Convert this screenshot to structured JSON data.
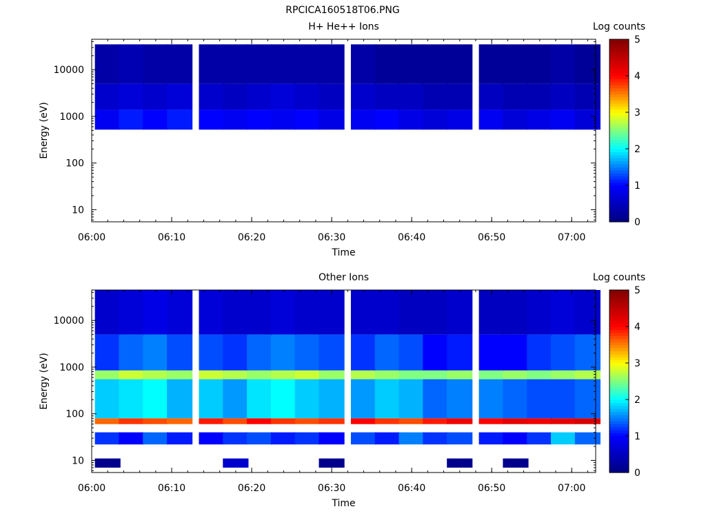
{
  "figure_title": "RPCICA160518T06.PNG",
  "colors": {
    "colormap": [
      "#000080",
      "#0000ff",
      "#00ffff",
      "#ffff00",
      "#ff0000",
      "#800000"
    ],
    "background": "#ffffff",
    "axis": "#000000"
  },
  "chart_data": [
    {
      "type": "heatmap",
      "title": "H+ He++ Ions",
      "xlabel": "Time",
      "ylabel": "Energy (eV)",
      "yscale": "log",
      "xlim": [
        "06:00",
        "07:03"
      ],
      "ylim": [
        5.5,
        45000
      ],
      "x_ticks": [
        "06:00",
        "06:10",
        "06:20",
        "06:30",
        "06:40",
        "06:50",
        "07:00"
      ],
      "y_ticks": [
        "10",
        "100",
        "1000",
        "10000"
      ],
      "colorbar": {
        "label": "Log counts",
        "range": [
          0,
          5
        ],
        "ticks": [
          "0",
          "1",
          "2",
          "3",
          "4",
          "5"
        ]
      },
      "time_columns": [
        "06:02",
        "06:05",
        "06:08",
        "06:11",
        "06:15",
        "06:18",
        "06:21",
        "06:24",
        "06:27",
        "06:30",
        "06:34",
        "06:37",
        "06:40",
        "06:43",
        "06:46",
        "06:50",
        "06:53",
        "06:56",
        "06:59",
        "07:02"
      ],
      "energy_bands": [
        {
          "emin": 520,
          "emax": 1400,
          "log_counts": [
            0.9,
            1.1,
            1.0,
            1.1,
            1.0,
            0.9,
            1.0,
            0.9,
            1.0,
            0.8,
            0.9,
            1.0,
            0.8,
            0.7,
            0.8,
            0.9,
            0.7,
            0.8,
            0.9,
            0.7
          ]
        },
        {
          "emin": 1400,
          "emax": 5000,
          "log_counts": [
            0.6,
            0.7,
            0.6,
            0.7,
            0.6,
            0.5,
            0.6,
            0.7,
            0.6,
            0.5,
            0.6,
            0.5,
            0.5,
            0.4,
            0.4,
            0.5,
            0.4,
            0.4,
            0.5,
            0.4
          ]
        },
        {
          "emin": 5000,
          "emax": 35000,
          "log_counts": [
            0.3,
            0.4,
            0.3,
            0.3,
            0.3,
            0.3,
            0.3,
            0.3,
            0.3,
            0.3,
            0.3,
            0.2,
            0.2,
            0.2,
            0.2,
            0.2,
            0.2,
            0.2,
            0.3,
            0.2
          ]
        }
      ]
    },
    {
      "type": "heatmap",
      "title": "Other Ions",
      "xlabel": "Time",
      "ylabel": "Energy (eV)",
      "yscale": "log",
      "xlim": [
        "06:00",
        "07:03"
      ],
      "ylim": [
        5.5,
        45000
      ],
      "x_ticks": [
        "06:00",
        "06:10",
        "06:20",
        "06:30",
        "06:40",
        "06:50",
        "07:00"
      ],
      "y_ticks": [
        "10",
        "100",
        "1000",
        "10000"
      ],
      "colorbar": {
        "label": "Log counts",
        "range": [
          0,
          5
        ],
        "ticks": [
          "0",
          "1",
          "2",
          "3",
          "4",
          "5"
        ]
      },
      "time_columns": [
        "06:02",
        "06:05",
        "06:08",
        "06:11",
        "06:15",
        "06:18",
        "06:21",
        "06:24",
        "06:27",
        "06:30",
        "06:34",
        "06:37",
        "06:40",
        "06:43",
        "06:46",
        "06:50",
        "06:53",
        "06:56",
        "06:59",
        "07:02"
      ],
      "energy_bands": [
        {
          "emin": 7,
          "emax": 11,
          "log_counts": [
            0.1,
            null,
            null,
            null,
            null,
            0.6,
            null,
            null,
            null,
            0.1,
            null,
            null,
            null,
            null,
            0.1,
            null,
            0.1,
            null,
            null,
            null
          ]
        },
        {
          "emin": 22,
          "emax": 40,
          "log_counts": [
            1.2,
            1.0,
            1.4,
            1.1,
            1.0,
            1.2,
            1.3,
            1.1,
            1.2,
            1.0,
            1.3,
            1.1,
            1.5,
            1.2,
            1.3,
            1.1,
            1.0,
            1.2,
            1.8,
            1.4
          ]
        },
        {
          "emin": 60,
          "emax": 80,
          "log_counts": [
            3.6,
            3.8,
            3.7,
            3.6,
            3.9,
            3.7,
            4.0,
            3.8,
            3.7,
            3.8,
            4.0,
            3.8,
            3.7,
            3.9,
            4.1,
            4.0,
            4.2,
            4.1,
            4.2,
            4.3
          ]
        },
        {
          "emin": 80,
          "emax": 550,
          "log_counts": [
            1.8,
            1.9,
            2.0,
            1.7,
            1.8,
            1.6,
            1.9,
            2.0,
            1.8,
            1.7,
            1.6,
            1.8,
            1.7,
            1.4,
            1.5,
            1.5,
            1.4,
            1.3,
            1.3,
            1.4
          ]
        },
        {
          "emin": 550,
          "emax": 850,
          "log_counts": [
            2.6,
            2.8,
            2.7,
            2.6,
            2.8,
            2.7,
            2.6,
            2.7,
            2.8,
            2.6,
            2.7,
            2.6,
            2.5,
            2.5,
            2.6,
            2.5,
            2.6,
            2.5,
            2.6,
            2.7
          ]
        },
        {
          "emin": 850,
          "emax": 5000,
          "log_counts": [
            1.2,
            1.4,
            1.5,
            1.3,
            1.3,
            1.2,
            1.4,
            1.5,
            1.4,
            1.3,
            1.2,
            1.4,
            1.3,
            1.0,
            1.1,
            1.0,
            1.0,
            1.2,
            1.3,
            1.4
          ]
        },
        {
          "emin": 5000,
          "emax": 45000,
          "log_counts": [
            0.6,
            0.7,
            0.8,
            0.7,
            0.7,
            0.6,
            0.6,
            0.7,
            0.6,
            0.6,
            0.6,
            0.6,
            0.5,
            0.5,
            0.6,
            0.5,
            0.5,
            0.6,
            0.7,
            0.6
          ]
        }
      ]
    }
  ]
}
